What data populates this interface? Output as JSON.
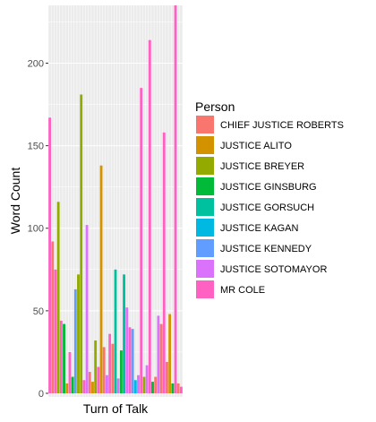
{
  "chart_data": {
    "type": "bar",
    "title": "",
    "xlabel": "Turn of Talk",
    "ylabel": "Word Count",
    "ylim": [
      0,
      235
    ],
    "y_ticks": [
      0,
      50,
      100,
      150,
      200
    ],
    "grid": true,
    "legend_position": "right",
    "legend_title": "Person",
    "series": [
      {
        "name": "CHIEF JUSTICE ROBERTS",
        "color": "#F8766D"
      },
      {
        "name": "JUSTICE ALITO",
        "color": "#D39200"
      },
      {
        "name": "JUSTICE BREYER",
        "color": "#93AA00"
      },
      {
        "name": "JUSTICE GINSBURG",
        "color": "#00BA38"
      },
      {
        "name": "JUSTICE GORSUCH",
        "color": "#00C19F"
      },
      {
        "name": "JUSTICE KAGAN",
        "color": "#00B9E3"
      },
      {
        "name": "JUSTICE KENNEDY",
        "color": "#619CFF"
      },
      {
        "name": "JUSTICE SOTOMAYOR",
        "color": "#DB72FB"
      },
      {
        "name": "MR COLE",
        "color": "#FF61C3"
      }
    ],
    "turns": [
      {
        "speaker": "MR COLE",
        "value": 167
      },
      {
        "speaker": "CHIEF JUSTICE ROBERTS",
        "value": 92
      },
      {
        "speaker": "MR COLE",
        "value": 75
      },
      {
        "speaker": "JUSTICE BREYER",
        "value": 116
      },
      {
        "speaker": "MR COLE",
        "value": 44
      },
      {
        "speaker": "JUSTICE GINSBURG",
        "value": 42
      },
      {
        "speaker": "JUSTICE ALITO",
        "value": 6
      },
      {
        "speaker": "MR COLE",
        "value": 25
      },
      {
        "speaker": "JUSTICE GINSBURG",
        "value": 10
      },
      {
        "speaker": "JUSTICE KENNEDY",
        "value": 63
      },
      {
        "speaker": "JUSTICE BREYER",
        "value": 72
      },
      {
        "speaker": "JUSTICE BREYER",
        "value": 181
      },
      {
        "speaker": "MR COLE",
        "value": 8
      },
      {
        "speaker": "JUSTICE SOTOMAYOR",
        "value": 102
      },
      {
        "speaker": "CHIEF JUSTICE ROBERTS",
        "value": 13
      },
      {
        "speaker": "JUSTICE ALITO",
        "value": 7
      },
      {
        "speaker": "JUSTICE BREYER",
        "value": 32
      },
      {
        "speaker": "MR COLE",
        "value": 16
      },
      {
        "speaker": "JUSTICE ALITO",
        "value": 138
      },
      {
        "speaker": "CHIEF JUSTICE ROBERTS",
        "value": 28
      },
      {
        "speaker": "JUSTICE SOTOMAYOR",
        "value": 11
      },
      {
        "speaker": "MR COLE",
        "value": 36
      },
      {
        "speaker": "CHIEF JUSTICE ROBERTS",
        "value": 30
      },
      {
        "speaker": "JUSTICE GORSUCH",
        "value": 75
      },
      {
        "speaker": "JUSTICE SOTOMAYOR",
        "value": 9
      },
      {
        "speaker": "JUSTICE GINSBURG",
        "value": 26
      },
      {
        "speaker": "JUSTICE GORSUCH",
        "value": 72
      },
      {
        "speaker": "JUSTICE SOTOMAYOR",
        "value": 52
      },
      {
        "speaker": "MR COLE",
        "value": 40
      },
      {
        "speaker": "JUSTICE KENNEDY",
        "value": 39
      },
      {
        "speaker": "JUSTICE KAGAN",
        "value": 8
      },
      {
        "speaker": "JUSTICE SOTOMAYOR",
        "value": 11
      },
      {
        "speaker": "MR COLE",
        "value": 185
      },
      {
        "speaker": "JUSTICE BREYER",
        "value": 10
      },
      {
        "speaker": "JUSTICE SOTOMAYOR",
        "value": 17
      },
      {
        "speaker": "MR COLE",
        "value": 214
      },
      {
        "speaker": "JUSTICE GINSBURG",
        "value": 7
      },
      {
        "speaker": "CHIEF JUSTICE ROBERTS",
        "value": 10
      },
      {
        "speaker": "JUSTICE SOTOMAYOR",
        "value": 47
      },
      {
        "speaker": "CHIEF JUSTICE ROBERTS",
        "value": 42
      },
      {
        "speaker": "MR COLE",
        "value": 158
      },
      {
        "speaker": "CHIEF JUSTICE ROBERTS",
        "value": 19
      },
      {
        "speaker": "JUSTICE ALITO",
        "value": 48
      },
      {
        "speaker": "JUSTICE GINSBURG",
        "value": 6
      },
      {
        "speaker": "MR COLE",
        "value": 235
      },
      {
        "speaker": "CHIEF JUSTICE ROBERTS",
        "value": 6
      },
      {
        "speaker": "MR COLE",
        "value": 4
      }
    ]
  }
}
